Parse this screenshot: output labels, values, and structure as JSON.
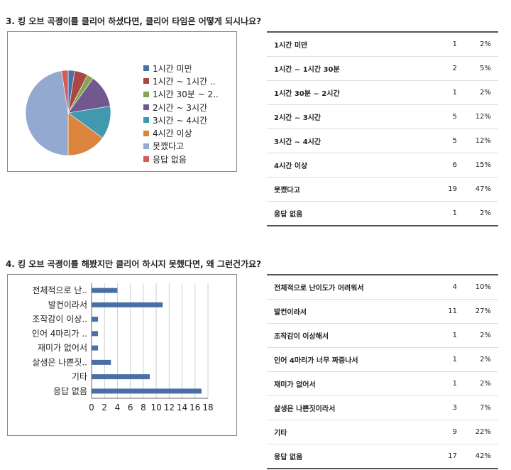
{
  "q3": {
    "title": "3. 킹 오브 곡괭이를 클리어 하셨다면, 클리어 타임은 어떻게 되시나요?",
    "legend": [
      "1시간 미만",
      "1시간 ~ 1시간 ..",
      "1시간 30분 ~ 2..",
      "2시간 ~ 3시간",
      "3시간 ~ 4시간",
      "4시간 이상",
      "못깼다고",
      "응답 없음"
    ],
    "rows": [
      {
        "label": "1시간 미만",
        "count": "1",
        "pct": "2%"
      },
      {
        "label": "1시간 ~ 1시간 30분",
        "count": "2",
        "pct": "5%"
      },
      {
        "label": "1시간 30분 ~ 2시간",
        "count": "1",
        "pct": "2%"
      },
      {
        "label": "2시간 ~ 3시간",
        "count": "5",
        "pct": "12%"
      },
      {
        "label": "3시간 ~ 4시간",
        "count": "5",
        "pct": "12%"
      },
      {
        "label": "4시간 이상",
        "count": "6",
        "pct": "15%"
      },
      {
        "label": "못깼다고",
        "count": "19",
        "pct": "47%"
      },
      {
        "label": "응답 없음",
        "count": "1",
        "pct": "2%"
      }
    ]
  },
  "q4": {
    "title": "4. 킹 오브 곡괭이를 해봤지만 클리어 하시지 못했다면, 왜 그런건가요?",
    "tick_labels": [
      "전체적으로 난..",
      "발컨이라서",
      "조작감이 이상..",
      "인어 4마리가 ..",
      "재미가 없어서",
      "살생은 나쁜짓..",
      "기타",
      "응답 없음"
    ],
    "rows": [
      {
        "label": "전체적으로 난이도가 어려워서",
        "count": "4",
        "pct": "10%"
      },
      {
        "label": "발컨이라서",
        "count": "11",
        "pct": "27%"
      },
      {
        "label": "조작감이 이상해서",
        "count": "1",
        "pct": "2%"
      },
      {
        "label": "인어 4마리가 너무 짜증나서",
        "count": "1",
        "pct": "2%"
      },
      {
        "label": "재미가 없어서",
        "count": "1",
        "pct": "2%"
      },
      {
        "label": "살생은 나쁜짓이라서",
        "count": "3",
        "pct": "7%"
      },
      {
        "label": "기타",
        "count": "9",
        "pct": "22%"
      },
      {
        "label": "응답 없음",
        "count": "17",
        "pct": "42%"
      }
    ]
  },
  "chart_data": [
    {
      "type": "pie",
      "categories": [
        "1시간 미만",
        "1시간 ~ 1시간 ..",
        "1시간 30분 ~ 2..",
        "2시간 ~ 3시간",
        "3시간 ~ 4시간",
        "4시간 이상",
        "못깼다고",
        "응답 없음"
      ],
      "values": [
        1,
        2,
        1,
        5,
        5,
        6,
        19,
        1
      ],
      "colors": [
        "#4572a7",
        "#aa4643",
        "#89a54e",
        "#71588f",
        "#4198af",
        "#db843d",
        "#93a9cf",
        "#d15c5a"
      ],
      "legend": "right"
    },
    {
      "type": "bar",
      "orientation": "horizontal",
      "categories": [
        "전체적으로 난..",
        "발컨이라서",
        "조작감이 이상..",
        "인어 4마리가 ..",
        "재미가 없어서",
        "살생은 나쁜짓..",
        "기타",
        "응답 없음"
      ],
      "values": [
        4,
        11,
        1,
        1,
        1,
        3,
        9,
        17
      ],
      "xlim": [
        0,
        18
      ],
      "xticks": [
        "0",
        "2",
        "4",
        "6",
        "8",
        "10",
        "12",
        "14",
        "16",
        "18"
      ],
      "grid": true,
      "color": "#4a6fa5"
    }
  ]
}
